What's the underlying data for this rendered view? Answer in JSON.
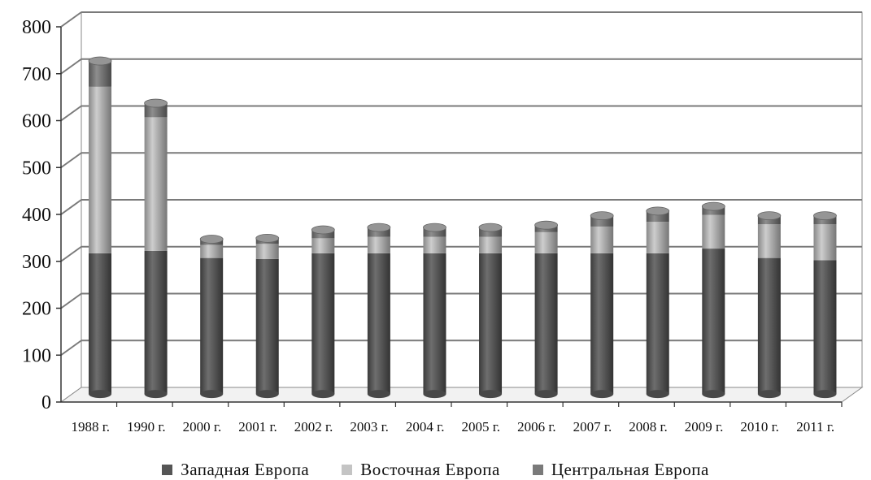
{
  "chart_data": {
    "type": "bar",
    "stacked": true,
    "three_d": true,
    "categories": [
      "1988 г.",
      "1990 г.",
      "2000 г.",
      "2001 г.",
      "2002 г.",
      "2003 г.",
      "2004 г.",
      "2005 г.",
      "2006 г.",
      "2007 г.",
      "2008 г.",
      "2009 г.",
      "2010 г.",
      "2011 г."
    ],
    "series": [
      {
        "name": "Западная Европа",
        "color": "#555555",
        "values": [
          300,
          305,
          290,
          288,
          300,
          300,
          300,
          300,
          300,
          300,
          300,
          310,
          290,
          285
        ]
      },
      {
        "name": "Восточная Европа",
        "color": "#c4c4c4",
        "values": [
          355,
          285,
          28,
          32,
          32,
          35,
          35,
          35,
          45,
          57,
          67,
          72,
          72,
          77
        ]
      },
      {
        "name": "Центральная Европа",
        "color": "#7a7a7a",
        "values": [
          55,
          30,
          12,
          12,
          18,
          20,
          20,
          20,
          15,
          23,
          23,
          18,
          18,
          18
        ]
      }
    ],
    "yticks": [
      "0",
      "100",
      "200",
      "300",
      "400",
      "500",
      "600",
      "700",
      "800"
    ],
    "ylim": [
      0,
      800
    ],
    "grid": true,
    "legend_position": "bottom"
  }
}
